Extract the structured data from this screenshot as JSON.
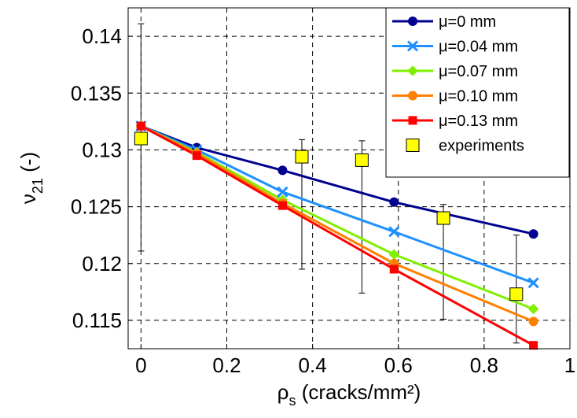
{
  "chart_data": {
    "type": "line",
    "xlabel": "ρs (cracks/mm²)",
    "xlabel_main": "ρ",
    "xlabel_sub": "s",
    "xlabel_rest": " (cracks/mm²)",
    "ylabel_main": "ν",
    "ylabel_sub": "21",
    "ylabel_rest": " (-)",
    "xlim": [
      -0.03,
      1.0
    ],
    "ylim": [
      0.1125,
      0.1425
    ],
    "xticks": [
      0,
      0.2,
      0.4,
      0.6,
      0.8,
      1
    ],
    "xtick_labels": [
      "0",
      "0.2",
      "0.4",
      "0.6",
      "0.8",
      "1"
    ],
    "yticks": [
      0.115,
      0.12,
      0.125,
      0.13,
      0.135,
      0.14
    ],
    "ytick_labels": [
      "0.115",
      "0.12",
      "0.125",
      "0.13",
      "0.135",
      "0.14"
    ],
    "grid": true,
    "legend_position": "top-right",
    "x": [
      0,
      0.13,
      0.33,
      0.59,
      0.915
    ],
    "series": [
      {
        "name": "μ=0 mm",
        "color": "#00008F",
        "marker": "circle",
        "values": [
          0.1321,
          0.1302,
          0.1282,
          0.1254,
          0.1226
        ]
      },
      {
        "name": "μ=0.04 mm",
        "color": "#1E90FF",
        "marker": "x",
        "values": [
          0.1321,
          0.13,
          0.1263,
          0.1228,
          0.1183
        ]
      },
      {
        "name": "μ=0.07 mm",
        "color": "#80F000",
        "marker": "diamond",
        "values": [
          0.1321,
          0.1298,
          0.1256,
          0.1208,
          0.116
        ]
      },
      {
        "name": "μ=0.10 mm",
        "color": "#FF8000",
        "marker": "circle",
        "values": [
          0.1321,
          0.1297,
          0.1253,
          0.12,
          0.1149
        ]
      },
      {
        "name": "μ=0.13 mm",
        "color": "#FF0000",
        "marker": "square",
        "values": [
          0.1321,
          0.1295,
          0.1251,
          0.1195,
          0.1128
        ]
      }
    ],
    "experiments": {
      "name": "experiments",
      "color": "#FFFF00",
      "points": [
        {
          "x": 0.0,
          "y": 0.131,
          "low": 0.1211,
          "high": 0.1411
        },
        {
          "x": 0.375,
          "y": 0.1294,
          "low": 0.1195,
          "high": 0.1309
        },
        {
          "x": 0.515,
          "y": 0.1291,
          "low": 0.1174,
          "high": 0.1308
        },
        {
          "x": 0.705,
          "y": 0.124,
          "low": 0.1151,
          "high": 0.1252
        },
        {
          "x": 0.875,
          "y": 0.1173,
          "low": 0.113,
          "high": 0.1225
        }
      ]
    }
  }
}
